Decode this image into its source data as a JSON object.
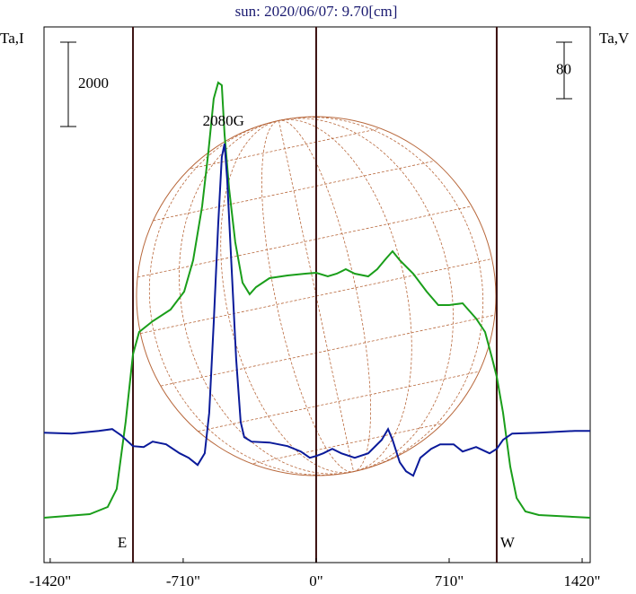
{
  "chart_data": {
    "type": "line",
    "title": "sun: 2020/06/07: 9.70[cm]",
    "ylabel": "Ta,I",
    "y2label": "Ta,V",
    "annotation": "2080G",
    "annotation_x": -495,
    "limb_labels": [
      "E",
      "W"
    ],
    "vlines": [
      -978,
      0,
      964
    ],
    "vline_color": "#3a1010",
    "scale_bar_i": 2000,
    "scale_bar_v": 80,
    "xlim": [
      -1453,
      1463
    ],
    "xticks": [
      {
        "value": -1420,
        "label": "-1420\""
      },
      {
        "value": -710,
        "label": "-710\""
      },
      {
        "value": 0,
        "label": "0\""
      },
      {
        "value": 710,
        "label": "710\""
      },
      {
        "value": 1420,
        "label": "1420\""
      }
    ],
    "ylim": [
      -1064,
      11640
    ],
    "y2lim": [
      -161,
      597
    ],
    "series": [
      {
        "name": "Ta,I",
        "color": "#1a9e1a",
        "x": [
          -1453,
          -1209,
          -1113,
          -1065,
          -1017,
          -978,
          -945,
          -873,
          -777,
          -705,
          -657,
          -609,
          -576,
          -547,
          -523,
          -504,
          -489,
          -465,
          -432,
          -393,
          -355,
          -321,
          -249,
          -153,
          -58,
          0,
          62,
          110,
          158,
          206,
          278,
          326,
          374,
          408,
          446,
          518,
          590,
          652,
          710,
          782,
          854,
          902,
          940,
          964,
          998,
          1036,
          1070,
          1117,
          1189,
          1463
        ],
        "values": [
          0,
          85,
          255,
          681,
          2277,
          3873,
          4405,
          4660,
          4937,
          5363,
          6107,
          7384,
          8661,
          9938,
          10321,
          10257,
          9087,
          7810,
          6533,
          5575,
          5300,
          5469,
          5682,
          5746,
          5788,
          5810,
          5724,
          5788,
          5895,
          5788,
          5724,
          5895,
          6150,
          6320,
          6107,
          5788,
          5363,
          5044,
          5044,
          5086,
          4724,
          4405,
          3767,
          3341,
          2490,
          1213,
          468,
          149,
          64,
          0
        ]
      },
      {
        "name": "Ta,V",
        "color": "#0a1a9a",
        "axis": "y2",
        "x": [
          -1453,
          -1305,
          -1161,
          -1089,
          -1041,
          -978,
          -921,
          -873,
          -801,
          -729,
          -681,
          -633,
          -595,
          -571,
          -547,
          -523,
          -504,
          -489,
          -475,
          -451,
          -427,
          -403,
          -384,
          -345,
          -249,
          -153,
          -82,
          -34,
          0,
          38,
          86,
          134,
          206,
          278,
          350,
          384,
          408,
          446,
          480,
          518,
          556,
          614,
          662,
          734,
          782,
          854,
          926,
          964,
          998,
          1046,
          1189,
          1381,
          1463
        ],
        "values": [
          22.9,
          21.6,
          25.4,
          27.9,
          19.1,
          3.8,
          2.5,
          10.2,
          6.4,
          -6.4,
          -12.7,
          -22.9,
          -6.4,
          50.8,
          177.8,
          317.5,
          412.8,
          431.8,
          381,
          254,
          127,
          38.1,
          16.5,
          10.2,
          8.9,
          3.8,
          -3.8,
          -12.7,
          -10.2,
          -6.4,
          0,
          -6.4,
          -12.7,
          -6.4,
          12.7,
          27.9,
          12.7,
          -19.1,
          -31.8,
          -38.1,
          -12.7,
          0,
          6.4,
          6.4,
          -3.8,
          2.5,
          -6.4,
          0,
          12.7,
          21.6,
          22.9,
          25.4,
          25.4
        ]
      }
    ]
  }
}
